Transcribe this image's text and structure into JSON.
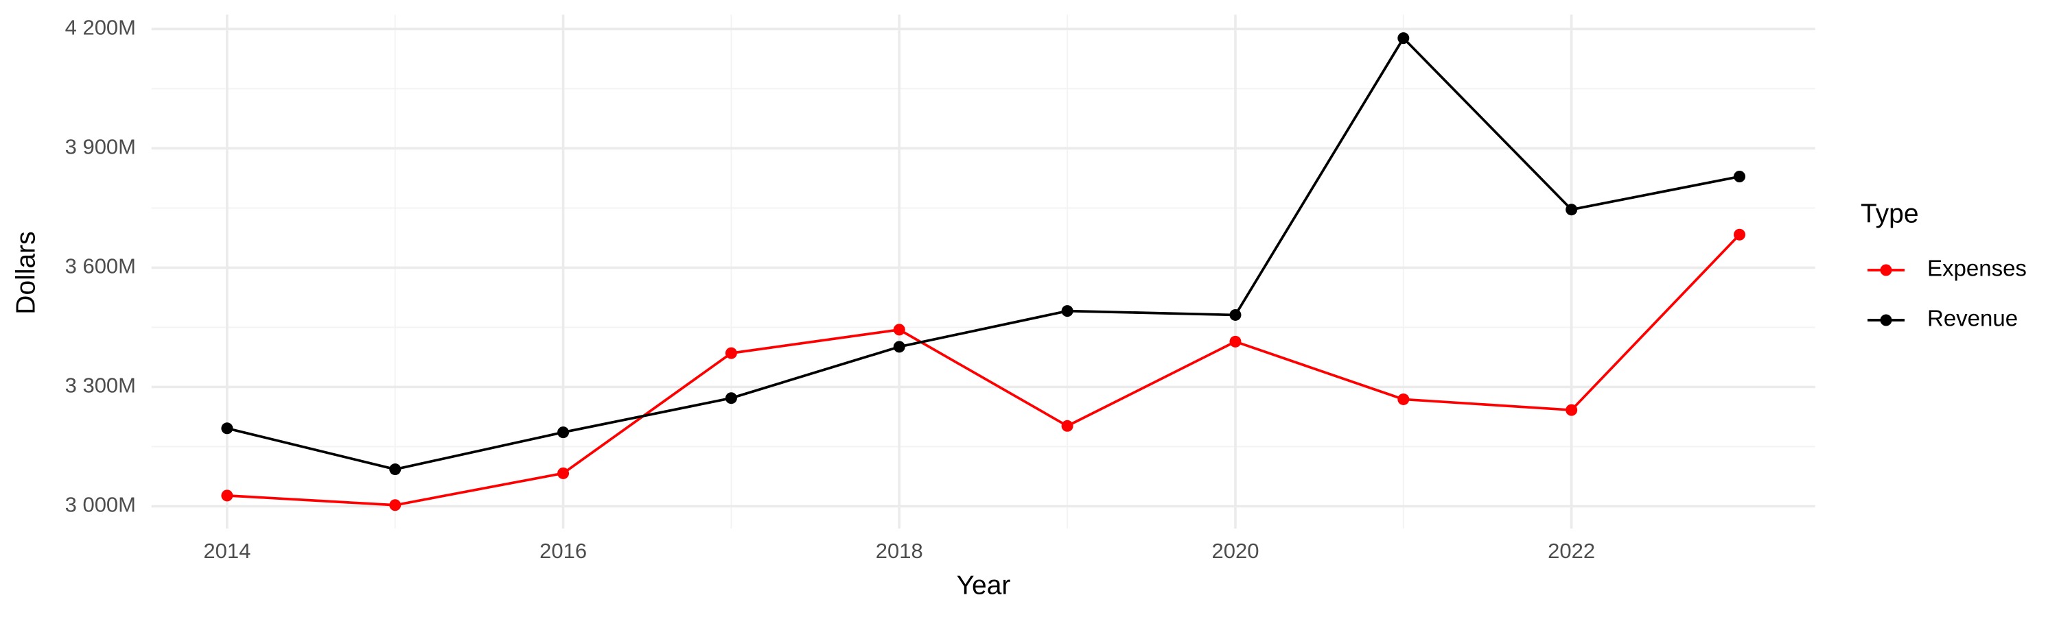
{
  "chart_data": {
    "type": "line",
    "x_label": "Year",
    "y_label": "Dollars",
    "legend_title": "Type",
    "legend_position": "right",
    "x": [
      2014,
      2015,
      2016,
      2017,
      2018,
      2019,
      2020,
      2021,
      2022,
      2023
    ],
    "series": [
      {
        "name": "Expenses",
        "color": "#ff0000",
        "values": [
          3027,
          3003,
          3083,
          3385,
          3444,
          3202,
          3414,
          3269,
          3242,
          3683
        ]
      },
      {
        "name": "Revenue",
        "color": "#000000",
        "values": [
          3196,
          3093,
          3186,
          3272,
          3401,
          3491,
          3481,
          4177,
          3746,
          3829
        ]
      }
    ],
    "xlim": [
      2013.55,
      2023.45
    ],
    "xticks": [
      2014,
      2016,
      2018,
      2020,
      2022
    ],
    "ylim": [
      2944,
      4236
    ],
    "yticks": [
      {
        "value": 3000,
        "label": "3 000M"
      },
      {
        "value": 3300,
        "label": "3 300M"
      },
      {
        "value": 3600,
        "label": "3 600M"
      },
      {
        "value": 3900,
        "label": "3 900M"
      },
      {
        "value": 4200,
        "label": "4 200M"
      }
    ],
    "grid": true
  }
}
